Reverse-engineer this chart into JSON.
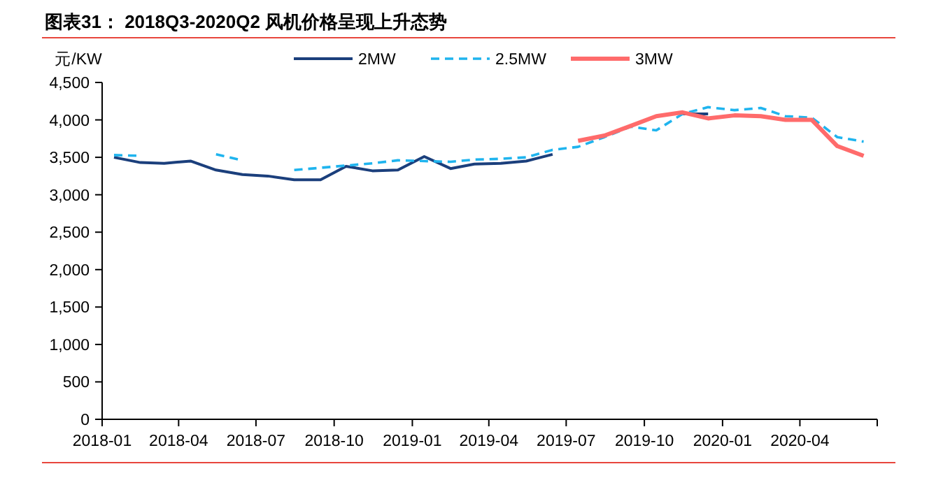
{
  "chart_data": {
    "type": "line",
    "title": "图表31：  2018Q3-2020Q2 风机价格呈现上升态势",
    "ylabel": "元/KW",
    "x": [
      "2018-01-15",
      "2018-02-15",
      "2018-03-15",
      "2018-04-15",
      "2018-05-15",
      "2018-06-15",
      "2018-07-15",
      "2018-08-15",
      "2018-09-15",
      "2018-10-15",
      "2018-11-15",
      "2018-12-15",
      "2019-01-15",
      "2019-02-15",
      "2019-03-15",
      "2019-04-15",
      "2019-05-15",
      "2019-06-15",
      "2019-07-15",
      "2019-08-15",
      "2019-09-15",
      "2019-10-15",
      "2019-11-15",
      "2019-12-15",
      "2020-01-15",
      "2020-02-15",
      "2020-03-15",
      "2020-04-15",
      "2020-05-15",
      "2020-06-15"
    ],
    "series": [
      {
        "name": "2MW",
        "color": "#1b3f7c",
        "line_style": "solid",
        "values": [
          3500,
          3430,
          3420,
          3450,
          3330,
          3270,
          3250,
          3200,
          3200,
          3380,
          3320,
          3330,
          3510,
          3350,
          3410,
          3420,
          3450,
          3540,
          null,
          null,
          null,
          null,
          4080,
          4080,
          null,
          null,
          null,
          null,
          null,
          null
        ]
      },
      {
        "name": "2.5MW",
        "color": "#1fb4ee",
        "line_style": "dashed",
        "values": [
          3530,
          3520,
          null,
          null,
          3540,
          3460,
          null,
          3330,
          3360,
          3390,
          3420,
          3460,
          3450,
          3440,
          3470,
          3480,
          3500,
          3600,
          3640,
          3770,
          3910,
          3860,
          4080,
          4170,
          4130,
          4160,
          4050,
          4030,
          3770,
          3710
        ]
      },
      {
        "name": "3MW",
        "color": "#ff6b6b",
        "line_style": "solid",
        "values": [
          null,
          null,
          null,
          null,
          null,
          null,
          null,
          null,
          null,
          null,
          null,
          null,
          null,
          null,
          null,
          null,
          null,
          null,
          3720,
          3790,
          3920,
          4050,
          4100,
          4020,
          4060,
          4050,
          4000,
          4000,
          3650,
          3520
        ]
      }
    ],
    "xlim": [
      "2018-01",
      "2020-07"
    ],
    "xticks": [
      "2018-01",
      "2018-04",
      "2018-07",
      "2018-10",
      "2019-01",
      "2019-04",
      "2019-07",
      "2019-10",
      "2020-01",
      "2020-04"
    ],
    "ylim": [
      0,
      4500
    ],
    "yticks": [
      {
        "value": 0,
        "label": "0"
      },
      {
        "value": 500,
        "label": "500"
      },
      {
        "value": 1000,
        "label": "1,000"
      },
      {
        "value": 1500,
        "label": "1,500"
      },
      {
        "value": 2000,
        "label": "2,000"
      },
      {
        "value": 2500,
        "label": "2,500"
      },
      {
        "value": 3000,
        "label": "3,000"
      },
      {
        "value": 3500,
        "label": "3,500"
      },
      {
        "value": 4000,
        "label": "4,000"
      },
      {
        "value": 4500,
        "label": "4,500"
      }
    ],
    "grid": false,
    "legend": "top",
    "marker": "none"
  }
}
